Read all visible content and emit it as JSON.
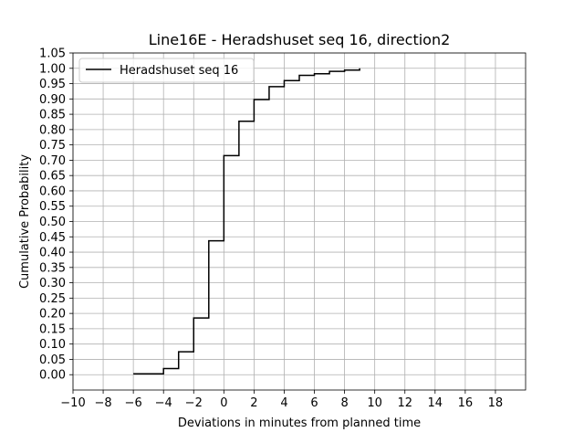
{
  "chart_data": {
    "type": "line",
    "step": "post",
    "title": "Line16E - Heradshuset seq 16, direction2",
    "xlabel": "Deviations in minutes from planned time",
    "ylabel": "Cumulative Probability",
    "xlim": [
      -10,
      20
    ],
    "ylim": [
      -0.05,
      1.05
    ],
    "xticks": [
      -10,
      -8,
      -6,
      -4,
      -2,
      0,
      2,
      4,
      6,
      8,
      10,
      12,
      14,
      16,
      18
    ],
    "xtick_labels": [
      "−10",
      "−8",
      "−6",
      "−4",
      "−2",
      "0",
      "2",
      "4",
      "6",
      "8",
      "10",
      "12",
      "14",
      "16",
      "18"
    ],
    "yticks": [
      0.0,
      0.05,
      0.1,
      0.15,
      0.2,
      0.25,
      0.3,
      0.35,
      0.4,
      0.45,
      0.5,
      0.55,
      0.6,
      0.65,
      0.7,
      0.75,
      0.8,
      0.85,
      0.9,
      0.95,
      1.0,
      1.05
    ],
    "ytick_labels": [
      "0.00",
      "0.05",
      "0.10",
      "0.15",
      "0.20",
      "0.25",
      "0.30",
      "0.35",
      "0.40",
      "0.45",
      "0.50",
      "0.55",
      "0.60",
      "0.65",
      "0.70",
      "0.75",
      "0.80",
      "0.85",
      "0.90",
      "0.95",
      "1.00",
      "1.05"
    ],
    "grid": true,
    "legend_position": "top-left",
    "series": [
      {
        "name": "Heradshuset seq 16",
        "color": "#000000",
        "x": [
          -6,
          -4,
          -3,
          -2,
          -1,
          0,
          1,
          2,
          3,
          4,
          5,
          6,
          7,
          8,
          9
        ],
        "y": [
          0.003,
          0.02,
          0.075,
          0.185,
          0.437,
          0.715,
          0.827,
          0.898,
          0.94,
          0.96,
          0.977,
          0.982,
          0.99,
          0.994,
          1.0
        ]
      }
    ]
  },
  "colors": {
    "grid": "#b0b0b0",
    "axes": "#000000",
    "background": "#ffffff"
  }
}
